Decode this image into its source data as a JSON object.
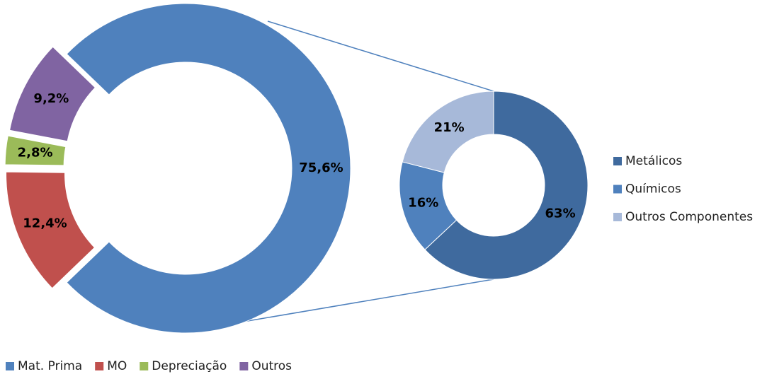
{
  "chart_data": [
    {
      "type": "donut",
      "categories": [
        "Mat. Prima",
        "MO",
        "Depreciação",
        "Outros"
      ],
      "values": [
        75.6,
        12.4,
        2.8,
        9.2
      ],
      "value_labels": [
        "75,6%",
        "12,4%",
        "2,8%",
        "9,2%"
      ],
      "colors": [
        "#4f81bd",
        "#c0504d",
        "#9bbb59",
        "#8064a2"
      ],
      "legend": "bottom"
    },
    {
      "type": "donut",
      "categories": [
        "Metálicos",
        "Químicos",
        "Outros Componentes"
      ],
      "values": [
        63,
        16,
        21
      ],
      "value_labels": [
        "63%",
        "16%",
        "21%"
      ],
      "colors": [
        "#3f6a9e",
        "#4f81bd",
        "#a7b9d9"
      ],
      "legend": "right"
    }
  ]
}
